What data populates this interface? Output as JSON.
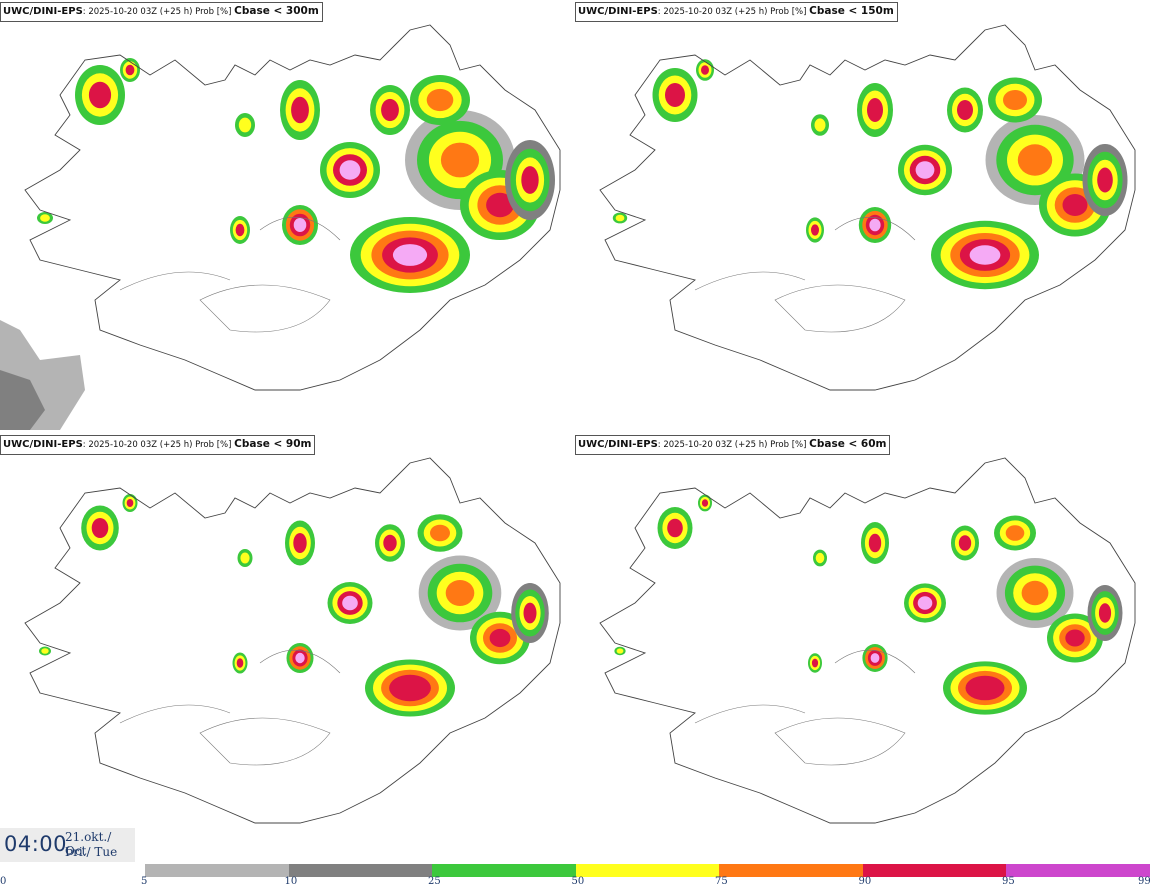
{
  "panels": [
    {
      "model": "UWC/DINI-EPS",
      "meta": ": 2025-10-20 03Z (+25 h) Prob [%] ",
      "param": "Cbase < 300m"
    },
    {
      "model": "UWC/DINI-EPS",
      "meta": ": 2025-10-20 03Z (+25 h) Prob [%] ",
      "param": "Cbase < 150m"
    },
    {
      "model": "UWC/DINI-EPS",
      "meta": ": 2025-10-20 03Z (+25 h) Prob [%] ",
      "param": "Cbase < 90m"
    },
    {
      "model": "UWC/DINI-EPS",
      "meta": ": 2025-10-20 03Z (+25 h) Prob [%] ",
      "param": "Cbase < 60m"
    }
  ],
  "valid_time": {
    "hour": "04:00",
    "date_line1": "21.okt./ Oct",
    "date_line2": "Þri./ Tue"
  },
  "legend": {
    "ticks": [
      "0",
      "5",
      "10",
      "25",
      "50",
      "75",
      "90",
      "95",
      "99"
    ],
    "colors": [
      "#ffffff",
      "#b4b4b4",
      "#808080",
      "#3cc83c",
      "#ffff1e",
      "#ff7814",
      "#dc1446",
      "#cd46cd",
      "#f5aaf5"
    ]
  }
}
